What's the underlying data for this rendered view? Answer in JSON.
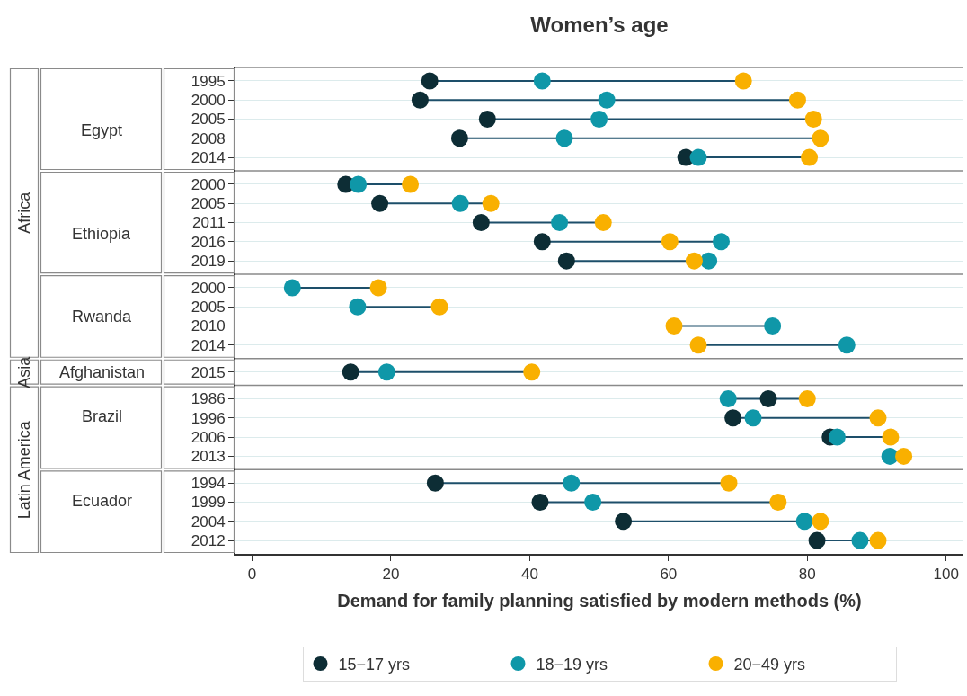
{
  "chart_data": [
    {
      "type": "scatter",
      "orientation": "horizontal",
      "title": "Women’s age",
      "ylabel": "Egypt",
      "annotations": [
        "Africa"
      ],
      "categories": [
        "1995",
        "2000",
        "2005",
        "2008",
        "2014"
      ],
      "xlim": [
        -2.4,
        102.5
      ],
      "xticks": [
        0,
        20,
        40,
        60,
        80,
        100
      ],
      "tick_labels": "y",
      "grid": "y",
      "marker": "circle",
      "legend": "bottom",
      "series": [
        {
          "name": "15−17 yrs",
          "color": "#0d2d35",
          "values": [
            25.6,
            24.2,
            33.9,
            29.9,
            62.5
          ]
        },
        {
          "name": "18−19 yrs",
          "color": "#0f97a8",
          "values": [
            41.8,
            51.1,
            50.0,
            45.0,
            64.3
          ]
        },
        {
          "name": "20−49 yrs",
          "color": "#f9b000",
          "values": [
            70.8,
            78.6,
            80.9,
            81.9,
            80.3
          ]
        }
      ]
    },
    {
      "type": "scatter",
      "orientation": "horizontal",
      "ylabel": "Ethiopia",
      "categories": [
        "2000",
        "2005",
        "2011",
        "2016",
        "2019"
      ],
      "xlim": [
        -2.4,
        102.5
      ],
      "xticks": [
        0,
        20,
        40,
        60,
        80,
        100
      ],
      "tick_labels": "y",
      "grid": "y",
      "marker": "circle",
      "series": [
        {
          "color": "#0d2d35",
          "values": [
            13.5,
            18.4,
            33.0,
            41.8,
            45.3
          ]
        },
        {
          "color": "#0f97a8",
          "values": [
            15.3,
            30.0,
            44.3,
            67.6,
            65.8
          ]
        },
        {
          "color": "#f9b000",
          "values": [
            22.8,
            34.4,
            50.6,
            60.2,
            63.7
          ]
        }
      ]
    },
    {
      "type": "scatter",
      "orientation": "horizontal",
      "ylabel": "Rwanda",
      "categories": [
        "2000",
        "2005",
        "2010",
        "2014"
      ],
      "xlim": [
        -2.4,
        102.5
      ],
      "xticks": [
        0,
        20,
        40,
        60,
        80,
        100
      ],
      "tick_labels": "y",
      "grid": "y",
      "marker": "circle",
      "series": [
        {
          "color": "#0d2d35",
          "values": [
            null,
            null,
            null,
            null
          ]
        },
        {
          "color": "#0f97a8",
          "values": [
            5.8,
            15.2,
            75.0,
            85.7
          ]
        },
        {
          "color": "#f9b000",
          "values": [
            18.2,
            27.0,
            60.8,
            64.3
          ]
        }
      ]
    },
    {
      "type": "scatter",
      "orientation": "horizontal",
      "ylabel": "Afghanistan",
      "annotations": [
        "Asia"
      ],
      "categories": [
        "2015"
      ],
      "xlim": [
        -2.4,
        102.5
      ],
      "xticks": [
        0,
        20,
        40,
        60,
        80,
        100
      ],
      "tick_labels": "y",
      "grid": "y",
      "marker": "circle",
      "series": [
        {
          "color": "#0d2d35",
          "values": [
            14.2
          ]
        },
        {
          "color": "#0f97a8",
          "values": [
            19.4
          ]
        },
        {
          "color": "#f9b000",
          "values": [
            40.3
          ]
        }
      ]
    },
    {
      "type": "scatter",
      "orientation": "horizontal",
      "ylabel": "Brazil",
      "annotations": [
        "Latin America"
      ],
      "categories": [
        "1986",
        "1996",
        "2006",
        "2013"
      ],
      "xlim": [
        -2.4,
        102.5
      ],
      "xticks": [
        0,
        20,
        40,
        60,
        80,
        100
      ],
      "tick_labels": "y",
      "grid": "y",
      "marker": "circle",
      "series": [
        {
          "color": "#0d2d35",
          "values": [
            74.4,
            69.3,
            83.3,
            null
          ]
        },
        {
          "color": "#0f97a8",
          "values": [
            68.6,
            72.2,
            84.3,
            91.9
          ]
        },
        {
          "color": "#f9b000",
          "values": [
            80.0,
            90.2,
            92.0,
            93.9
          ]
        }
      ]
    },
    {
      "type": "scatter",
      "orientation": "horizontal",
      "ylabel": "Ecuador",
      "xlabel": "Demand for family planning satisfied by modern methods (%)",
      "categories": [
        "1994",
        "1999",
        "2004",
        "2012"
      ],
      "xlim": [
        -2.4,
        102.5
      ],
      "xticks": [
        0,
        20,
        40,
        60,
        80,
        100
      ],
      "grid": "y",
      "marker": "circle",
      "series": [
        {
          "color": "#0d2d35",
          "values": [
            26.4,
            41.5,
            53.5,
            81.4
          ]
        },
        {
          "color": "#0f97a8",
          "values": [
            46.0,
            49.1,
            79.6,
            87.6
          ]
        },
        {
          "color": "#f9b000",
          "values": [
            68.7,
            75.8,
            81.9,
            90.2
          ]
        }
      ]
    }
  ]
}
